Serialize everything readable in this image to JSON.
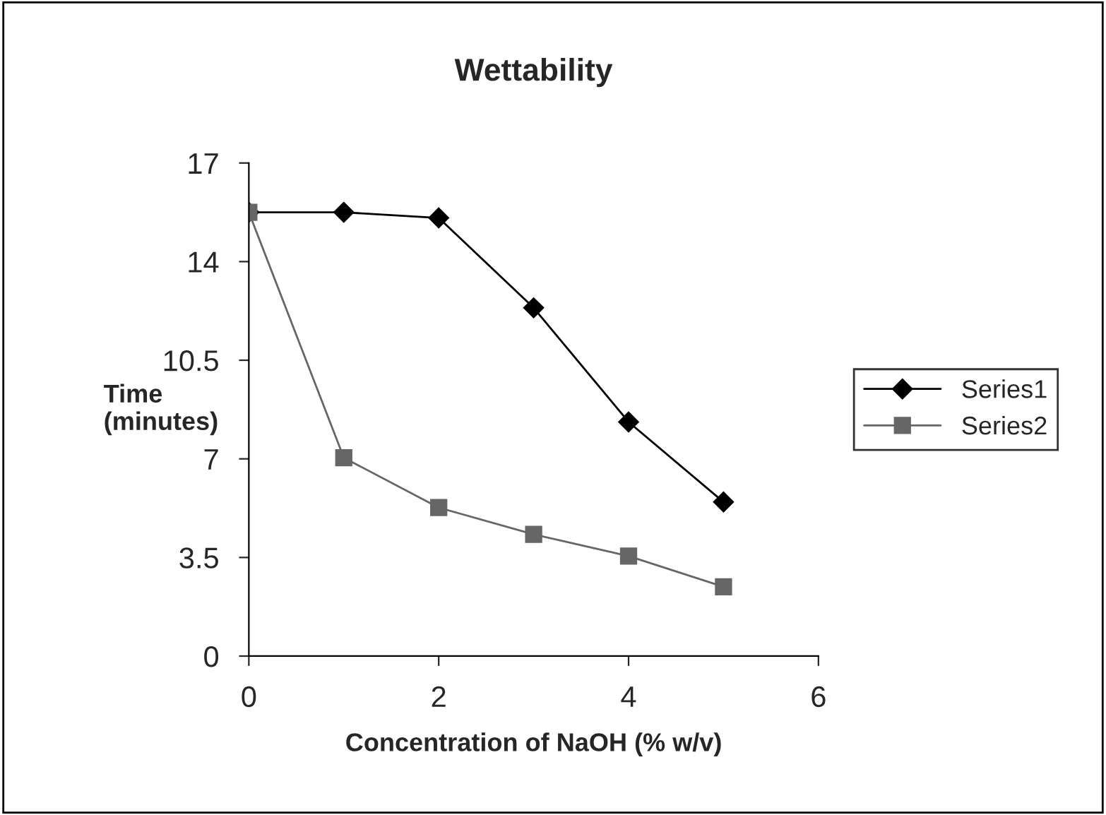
{
  "chart_data": {
    "type": "line",
    "title": "Wettability",
    "xlabel": "Concentration of NaOH (% w/v)",
    "ylabel": "Time\n(minutes)",
    "x": [
      0,
      1,
      2,
      3,
      4,
      5
    ],
    "series": [
      {
        "name": "Series1",
        "color": "#000000",
        "marker": "diamond",
        "values": [
          15.75,
          15.75,
          15.55,
          12.36,
          8.31,
          5.47
        ]
      },
      {
        "name": "Series2",
        "color": "#666666",
        "marker": "square",
        "values": [
          15.75,
          7.04,
          5.27,
          4.32,
          3.55,
          2.46
        ]
      }
    ],
    "xlim": [
      0,
      6
    ],
    "xticks": [
      0,
      2,
      4,
      6
    ],
    "ylim": [
      0,
      17.5
    ],
    "yticks": [
      0,
      3.5,
      7,
      10.5,
      14,
      {
        "value": 17.5,
        "label": "17"
      }
    ],
    "grid": false,
    "legend": "right",
    "line_style": "solid"
  }
}
